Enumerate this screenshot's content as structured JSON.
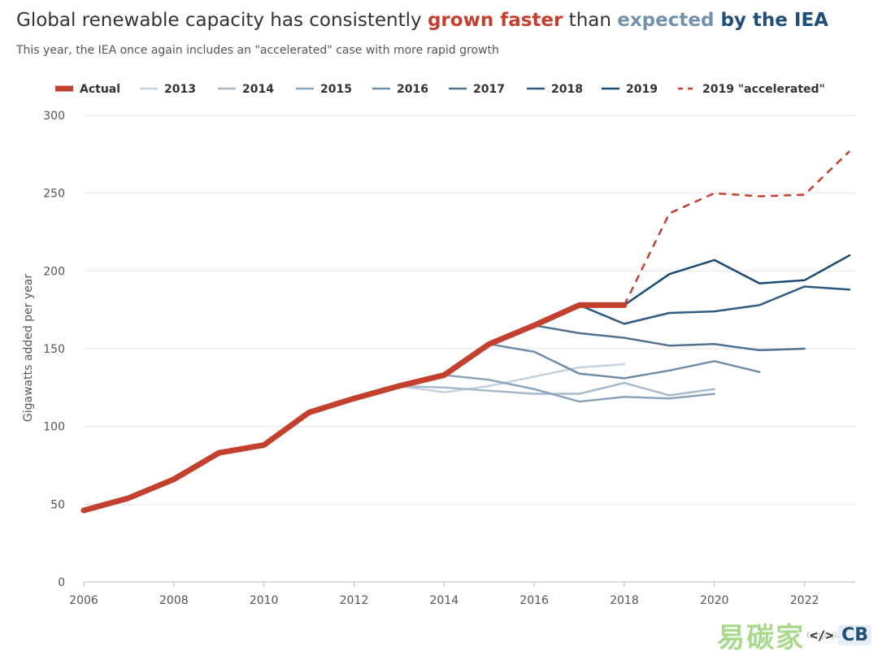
{
  "title": {
    "part1": "Global renewable capacity has consistently ",
    "part2": "grown faster",
    "part3": " than ",
    "part4": "expected ",
    "part5": "by the IEA"
  },
  "subtitle": "This year, the IEA once again includes an \"accelerated\" case with more rapid growth",
  "watermark": {
    "chinese": "易碳家",
    "site": "tanjiajia",
    "logo": "CB",
    "code_icon": "</>"
  },
  "chart_data": {
    "type": "line",
    "title": "Global renewable capacity has consistently grown faster than expected by the IEA",
    "subtitle": "This year, the IEA once again includes an \"accelerated\" case with more rapid growth",
    "ylabel": "Gigawatts added per year",
    "xlabel": "",
    "xlim": [
      2006,
      2023
    ],
    "ylim": [
      0,
      300
    ],
    "xticks": [
      2006,
      2008,
      2010,
      2012,
      2014,
      2016,
      2018,
      2020,
      2022
    ],
    "yticks": [
      0,
      50,
      100,
      150,
      200,
      250,
      300
    ],
    "grid": "horizontal",
    "legend_position": "top",
    "series": [
      {
        "name": "Actual",
        "color": "#c4402e",
        "style": "solid-thick",
        "x": [
          2006,
          2007,
          2008,
          2009,
          2010,
          2011,
          2012,
          2013,
          2014,
          2015,
          2016,
          2017,
          2018
        ],
        "y": [
          46,
          54,
          66,
          83,
          88,
          109,
          118,
          126,
          133,
          153,
          165,
          178,
          178
        ]
      },
      {
        "name": "2013",
        "color": "#c3d2de",
        "style": "solid",
        "x": [
          2013,
          2014,
          2015,
          2016,
          2017,
          2018
        ],
        "y": [
          126,
          122,
          126,
          132,
          138,
          140
        ]
      },
      {
        "name": "2014",
        "color": "#a7bac9",
        "style": "solid",
        "x": [
          2013,
          2014,
          2015,
          2016,
          2017,
          2018,
          2019,
          2020
        ],
        "y": [
          126,
          125,
          123,
          121,
          121,
          128,
          120,
          124
        ]
      },
      {
        "name": "2015",
        "color": "#8ba3b8",
        "style": "solid",
        "x": [
          2014,
          2015,
          2016,
          2017,
          2018,
          2019,
          2020
        ],
        "y": [
          133,
          130,
          124,
          116,
          119,
          118,
          121
        ]
      },
      {
        "name": "2016",
        "color": "#6f8ca6",
        "style": "solid",
        "x": [
          2015,
          2016,
          2017,
          2018,
          2019,
          2020,
          2021
        ],
        "y": [
          153,
          148,
          134,
          131,
          136,
          142,
          135
        ]
      },
      {
        "name": "2017",
        "color": "#50718f",
        "style": "solid",
        "x": [
          2016,
          2017,
          2018,
          2019,
          2020,
          2021,
          2022
        ],
        "y": [
          165,
          160,
          157,
          152,
          153,
          149,
          150
        ]
      },
      {
        "name": "2018",
        "color": "#2f5b80",
        "style": "solid",
        "x": [
          2017,
          2018,
          2019,
          2020,
          2021,
          2022,
          2023
        ],
        "y": [
          178,
          166,
          173,
          174,
          178,
          190,
          188
        ]
      },
      {
        "name": "2019",
        "color": "#1b4a72",
        "style": "solid",
        "x": [
          2018,
          2019,
          2020,
          2021,
          2022,
          2023
        ],
        "y": [
          178,
          198,
          207,
          192,
          194,
          210
        ]
      },
      {
        "name": "2019 \"accelerated\"",
        "color": "#c4402e",
        "style": "dashed",
        "x": [
          2018,
          2019,
          2020,
          2021,
          2022,
          2023
        ],
        "y": [
          178,
          237,
          250,
          248,
          249,
          277
        ]
      }
    ]
  }
}
